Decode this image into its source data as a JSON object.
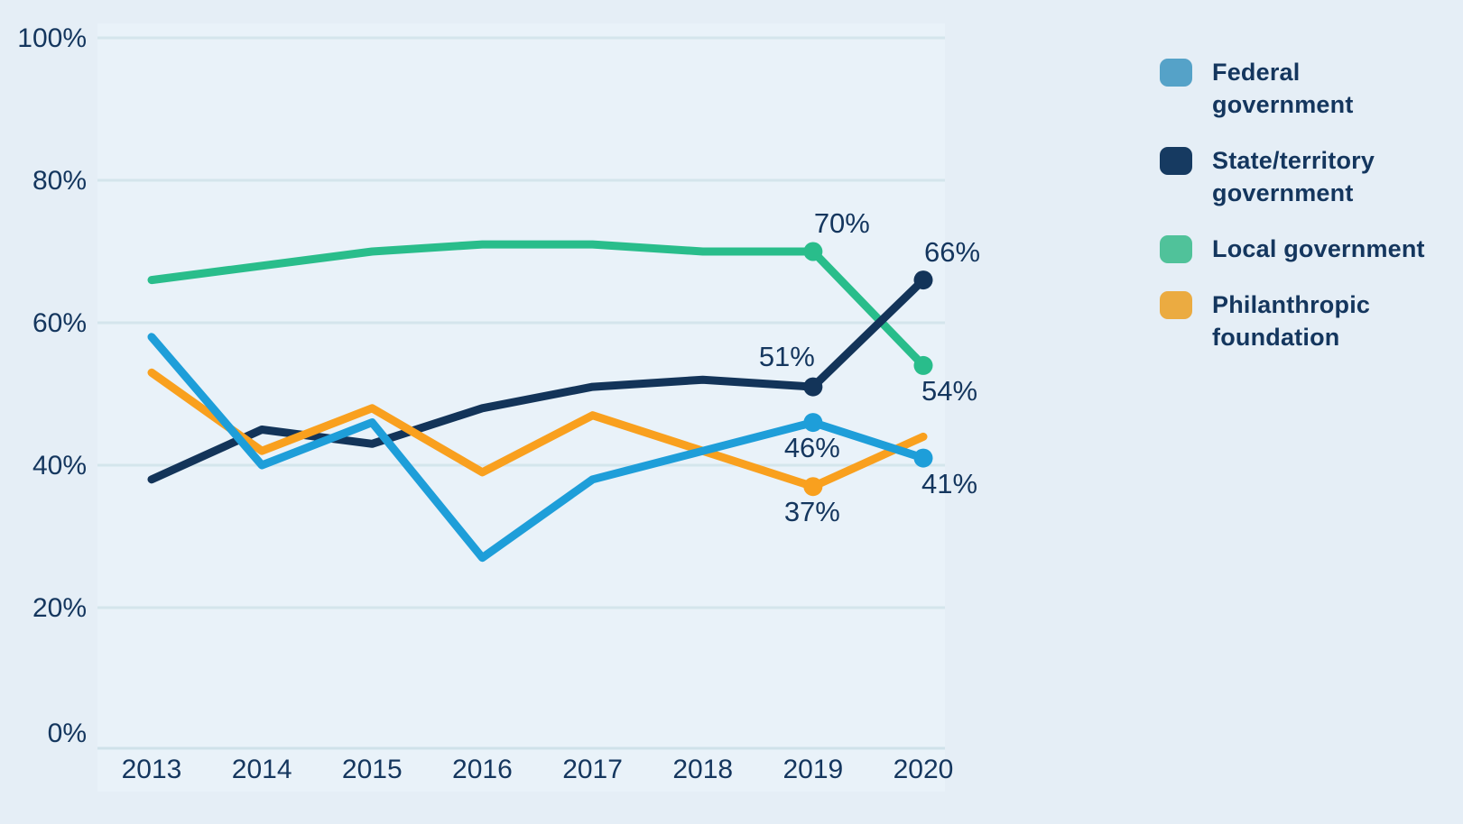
{
  "chart_data": {
    "type": "line",
    "title": "",
    "x": [
      2013,
      2014,
      2015,
      2016,
      2017,
      2018,
      2019,
      2020
    ],
    "y_axis": {
      "min": 0,
      "max": 100,
      "step": 20,
      "tick_labels": [
        "0%",
        "20%",
        "40%",
        "60%",
        "80%",
        "100%"
      ],
      "grid": true
    },
    "legend_position": "right",
    "series": [
      {
        "key": "federal",
        "name": "Federal government",
        "legend_lines": [
          "Federal",
          "government"
        ],
        "line_color": "#1E9ED9",
        "legend_color": "#55A2C8",
        "values": [
          58,
          40,
          46,
          27,
          38,
          42,
          46,
          41
        ]
      },
      {
        "key": "state",
        "name": "State/territory government",
        "legend_lines": [
          "State/territory",
          "government"
        ],
        "line_color": "#133459",
        "legend_color": "#163A61",
        "values": [
          38,
          45,
          43,
          48,
          51,
          52,
          51,
          66
        ]
      },
      {
        "key": "local",
        "name": "Local government",
        "legend_lines": [
          "Local government"
        ],
        "line_color": "#29BD8B",
        "legend_color": "#50C29A",
        "values": [
          66,
          68,
          70,
          71,
          71,
          70,
          70,
          54
        ]
      },
      {
        "key": "philanthropic",
        "name": "Philanthropic foundation",
        "legend_lines": [
          "Philanthropic",
          "foundation"
        ],
        "line_color": "#F9A01E",
        "legend_color": "#EBAB41",
        "values": [
          53,
          42,
          48,
          39,
          47,
          42,
          37,
          44
        ]
      }
    ],
    "point_labels": [
      {
        "series": "local",
        "year": 2019,
        "text": "70%",
        "placement": "above-right"
      },
      {
        "series": "state",
        "year": 2020,
        "text": "66%",
        "placement": "above-right"
      },
      {
        "series": "local",
        "year": 2020,
        "text": "54%",
        "placement": "below-right"
      },
      {
        "series": "state",
        "year": 2019,
        "text": "51%",
        "placement": "above-left"
      },
      {
        "series": "federal",
        "year": 2019,
        "text": "46%",
        "placement": "below"
      },
      {
        "series": "philanthropic",
        "year": 2019,
        "text": "37%",
        "placement": "below"
      },
      {
        "series": "federal",
        "year": 2020,
        "text": "41%",
        "placement": "below-right"
      }
    ]
  },
  "colors": {
    "background": "#e5eef6",
    "plot_background": "#e9f2f9",
    "gridline": "#d4e5ec",
    "axis_line": "#cfe2ea",
    "text": "#14365e"
  }
}
